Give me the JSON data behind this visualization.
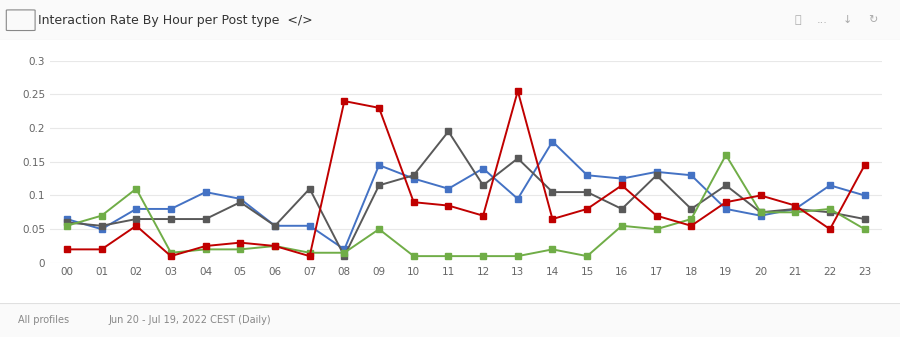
{
  "title": "Interaction Rate By Hour per Post type  </>",
  "hours": [
    "00",
    "01",
    "02",
    "03",
    "04",
    "05",
    "06",
    "07",
    "08",
    "09",
    "10",
    "11",
    "12",
    "13",
    "14",
    "15",
    "16",
    "17",
    "18",
    "19",
    "20",
    "21",
    "22",
    "23"
  ],
  "reels": [
    0.065,
    0.05,
    0.08,
    0.08,
    0.105,
    0.095,
    0.055,
    0.055,
    0.02,
    0.145,
    0.125,
    0.11,
    0.14,
    0.095,
    0.18,
    0.13,
    0.125,
    0.135,
    0.13,
    0.08,
    0.07,
    0.08,
    0.115,
    0.1
  ],
  "carousels": [
    0.06,
    0.055,
    0.065,
    0.065,
    0.065,
    0.09,
    0.055,
    0.11,
    0.01,
    0.115,
    0.13,
    0.195,
    0.115,
    0.155,
    0.105,
    0.105,
    0.08,
    0.13,
    0.08,
    0.115,
    0.075,
    0.08,
    0.075,
    0.065
  ],
  "videos": [
    0.055,
    0.07,
    0.11,
    0.015,
    0.02,
    0.02,
    0.025,
    0.015,
    0.015,
    0.05,
    0.01,
    0.01,
    0.01,
    0.01,
    0.02,
    0.01,
    0.055,
    0.05,
    0.065,
    0.16,
    0.075,
    0.075,
    0.08,
    0.05
  ],
  "images": [
    0.02,
    0.02,
    0.055,
    0.01,
    0.025,
    0.03,
    0.025,
    0.01,
    0.24,
    0.23,
    0.09,
    0.085,
    0.07,
    0.255,
    0.065,
    0.08,
    0.115,
    0.07,
    0.055,
    0.09,
    0.1,
    0.085,
    0.05,
    0.145
  ],
  "reels_color": "#4472c4",
  "carousels_color": "#595959",
  "videos_color": "#70ad47",
  "images_color": "#c00000",
  "background_color": "#ffffff",
  "header_bg": "#f8f8f8",
  "grid_color": "#e8e8e8",
  "ylim": [
    0,
    0.3
  ],
  "ytick_values": [
    0,
    0.05,
    0.1,
    0.15,
    0.2,
    0.25,
    0.3
  ],
  "ytick_labels": [
    "0",
    "0.05",
    "0.1",
    "0.15",
    "0.2",
    "0.25",
    "0.3"
  ],
  "footer_left": "All profiles",
  "footer_right": "Jun 20 - Jul 19, 2022 CEST (Daily)"
}
